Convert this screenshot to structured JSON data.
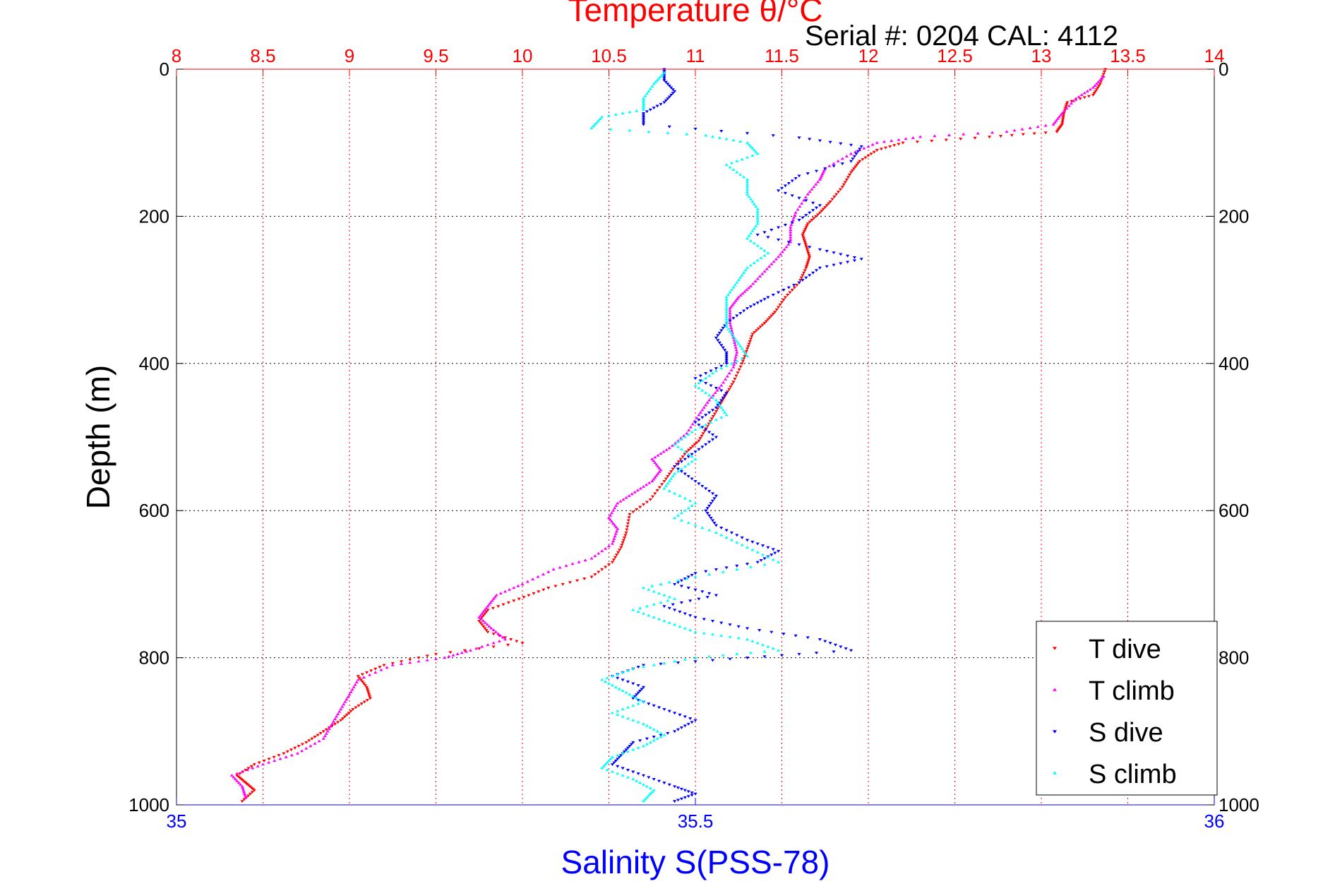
{
  "chart_data": {
    "type": "scatter",
    "title": "Temperature θ/°C",
    "annotation": "Serial #: 0204  CAL: 4112",
    "xlabel": "Salinity S(PSS-78)",
    "ylabel": "Depth (m)",
    "top_axis": {
      "ticks": [
        "8",
        "8.5",
        "9",
        "9.5",
        "10",
        "10.5",
        "11",
        "11.5",
        "12",
        "12.5",
        "13",
        "13.5",
        "14"
      ],
      "range": [
        8,
        14
      ],
      "color": "#ff0000"
    },
    "bottom_axis": {
      "ticks": [
        "35",
        "35.5",
        "36"
      ],
      "range": [
        35,
        36
      ],
      "color": "#0000ff"
    },
    "y_axis": {
      "ticks": [
        "0",
        "200",
        "400",
        "600",
        "800",
        "1000"
      ],
      "range": [
        0,
        1000
      ],
      "reversed": true
    },
    "grid": true,
    "legend_position": "bottom-right",
    "series": [
      {
        "name": "T dive",
        "color": "#ff0000",
        "axis": "temperature",
        "marker": "triangle-down",
        "points": [
          [
            13.37,
            0
          ],
          [
            13.34,
            20
          ],
          [
            13.3,
            35
          ],
          [
            13.15,
            45
          ],
          [
            13.13,
            60
          ],
          [
            13.12,
            75
          ],
          [
            13.09,
            85
          ],
          [
            12.7,
            92
          ],
          [
            12.2,
            100
          ],
          [
            12.05,
            110
          ],
          [
            11.95,
            125
          ],
          [
            11.9,
            140
          ],
          [
            11.85,
            160
          ],
          [
            11.78,
            180
          ],
          [
            11.72,
            195
          ],
          [
            11.65,
            210
          ],
          [
            11.62,
            225
          ],
          [
            11.64,
            240
          ],
          [
            11.66,
            255
          ],
          [
            11.64,
            270
          ],
          [
            11.6,
            290
          ],
          [
            11.52,
            310
          ],
          [
            11.46,
            330
          ],
          [
            11.4,
            345
          ],
          [
            11.33,
            360
          ],
          [
            11.3,
            380
          ],
          [
            11.27,
            400
          ],
          [
            11.22,
            425
          ],
          [
            11.17,
            445
          ],
          [
            11.12,
            465
          ],
          [
            11.07,
            485
          ],
          [
            11.02,
            505
          ],
          [
            10.95,
            520
          ],
          [
            10.88,
            540
          ],
          [
            10.82,
            560
          ],
          [
            10.74,
            585
          ],
          [
            10.62,
            605
          ],
          [
            10.6,
            630
          ],
          [
            10.57,
            650
          ],
          [
            10.52,
            670
          ],
          [
            10.4,
            690
          ],
          [
            10.15,
            705
          ],
          [
            9.98,
            720
          ],
          [
            9.8,
            735
          ],
          [
            9.75,
            750
          ],
          [
            9.8,
            765
          ],
          [
            10.0,
            780
          ],
          [
            9.5,
            795
          ],
          [
            9.2,
            810
          ],
          [
            9.05,
            825
          ],
          [
            9.1,
            840
          ],
          [
            9.12,
            855
          ],
          [
            9.02,
            870
          ],
          [
            8.95,
            885
          ],
          [
            8.85,
            900
          ],
          [
            8.75,
            915
          ],
          [
            8.62,
            930
          ],
          [
            8.45,
            945
          ],
          [
            8.35,
            960
          ],
          [
            8.4,
            970
          ],
          [
            8.45,
            980
          ],
          [
            8.38,
            995
          ]
        ]
      },
      {
        "name": "T climb",
        "color": "#ff00ff",
        "axis": "temperature",
        "marker": "triangle-up",
        "points": [
          [
            13.36,
            10
          ],
          [
            13.3,
            25
          ],
          [
            13.2,
            40
          ],
          [
            13.12,
            60
          ],
          [
            13.07,
            75
          ],
          [
            12.8,
            85
          ],
          [
            12.3,
            92
          ],
          [
            12.05,
            100
          ],
          [
            11.9,
            115
          ],
          [
            11.75,
            135
          ],
          [
            11.72,
            150
          ],
          [
            11.65,
            170
          ],
          [
            11.58,
            195
          ],
          [
            11.55,
            215
          ],
          [
            11.55,
            235
          ],
          [
            11.48,
            255
          ],
          [
            11.4,
            275
          ],
          [
            11.32,
            295
          ],
          [
            11.25,
            310
          ],
          [
            11.2,
            325
          ],
          [
            11.2,
            345
          ],
          [
            11.22,
            365
          ],
          [
            11.24,
            385
          ],
          [
            11.22,
            405
          ],
          [
            11.15,
            430
          ],
          [
            11.08,
            450
          ],
          [
            11.02,
            470
          ],
          [
            10.95,
            495
          ],
          [
            10.85,
            515
          ],
          [
            10.75,
            530
          ],
          [
            10.8,
            545
          ],
          [
            10.75,
            560
          ],
          [
            10.65,
            575
          ],
          [
            10.55,
            590
          ],
          [
            10.5,
            610
          ],
          [
            10.55,
            625
          ],
          [
            10.52,
            645
          ],
          [
            10.4,
            665
          ],
          [
            10.18,
            680
          ],
          [
            10.0,
            700
          ],
          [
            9.85,
            715
          ],
          [
            9.8,
            730
          ],
          [
            9.75,
            745
          ],
          [
            9.82,
            760
          ],
          [
            9.9,
            775
          ],
          [
            9.7,
            790
          ],
          [
            9.55,
            800
          ],
          [
            9.25,
            810
          ],
          [
            9.05,
            830
          ],
          [
            9.0,
            850
          ],
          [
            8.95,
            870
          ],
          [
            8.9,
            890
          ],
          [
            8.85,
            910
          ],
          [
            8.7,
            930
          ],
          [
            8.5,
            945
          ],
          [
            8.32,
            960
          ],
          [
            8.38,
            975
          ],
          [
            8.4,
            990
          ]
        ]
      },
      {
        "name": "S dive",
        "color": "#0000ff",
        "axis": "salinity",
        "marker": "triangle-down",
        "points": [
          [
            35.47,
            0
          ],
          [
            35.47,
            15
          ],
          [
            35.48,
            30
          ],
          [
            35.47,
            45
          ],
          [
            35.45,
            60
          ],
          [
            35.45,
            75
          ],
          [
            35.6,
            93
          ],
          [
            35.66,
            105
          ],
          [
            35.65,
            125
          ],
          [
            35.6,
            145
          ],
          [
            35.58,
            165
          ],
          [
            35.62,
            185
          ],
          [
            35.6,
            205
          ],
          [
            35.56,
            225
          ],
          [
            35.62,
            245
          ],
          [
            35.66,
            258
          ],
          [
            35.62,
            270
          ],
          [
            35.6,
            290
          ],
          [
            35.57,
            310
          ],
          [
            35.55,
            325
          ],
          [
            35.53,
            345
          ],
          [
            35.52,
            365
          ],
          [
            35.53,
            385
          ],
          [
            35.53,
            400
          ],
          [
            35.5,
            420
          ],
          [
            35.53,
            440
          ],
          [
            35.52,
            460
          ],
          [
            35.5,
            480
          ],
          [
            35.52,
            500
          ],
          [
            35.5,
            520
          ],
          [
            35.48,
            540
          ],
          [
            35.5,
            560
          ],
          [
            35.52,
            580
          ],
          [
            35.51,
            600
          ],
          [
            35.52,
            620
          ],
          [
            35.55,
            640
          ],
          [
            35.58,
            655
          ],
          [
            35.56,
            670
          ],
          [
            35.5,
            685
          ],
          [
            35.48,
            700
          ],
          [
            35.52,
            715
          ],
          [
            35.47,
            730
          ],
          [
            35.5,
            745
          ],
          [
            35.55,
            760
          ],
          [
            35.62,
            775
          ],
          [
            35.65,
            790
          ],
          [
            35.55,
            800
          ],
          [
            35.45,
            810
          ],
          [
            35.42,
            825
          ],
          [
            35.45,
            840
          ],
          [
            35.44,
            855
          ],
          [
            35.47,
            870
          ],
          [
            35.5,
            885
          ],
          [
            35.48,
            900
          ],
          [
            35.44,
            915
          ],
          [
            35.43,
            930
          ],
          [
            35.42,
            945
          ],
          [
            35.45,
            960
          ],
          [
            35.48,
            975
          ],
          [
            35.5,
            985
          ],
          [
            35.48,
            995
          ]
        ]
      },
      {
        "name": "S climb",
        "color": "#00ffff",
        "axis": "salinity",
        "marker": "triangle-up",
        "points": [
          [
            35.47,
            5
          ],
          [
            35.46,
            20
          ],
          [
            35.45,
            40
          ],
          [
            35.45,
            55
          ],
          [
            35.41,
            65
          ],
          [
            35.4,
            80
          ],
          [
            35.51,
            90
          ],
          [
            35.55,
            100
          ],
          [
            35.56,
            115
          ],
          [
            35.53,
            130
          ],
          [
            35.55,
            150
          ],
          [
            35.55,
            170
          ],
          [
            35.56,
            190
          ],
          [
            35.56,
            210
          ],
          [
            35.55,
            230
          ],
          [
            35.57,
            250
          ],
          [
            35.55,
            270
          ],
          [
            35.54,
            290
          ],
          [
            35.53,
            310
          ],
          [
            35.53,
            330
          ],
          [
            35.53,
            350
          ],
          [
            35.54,
            370
          ],
          [
            35.55,
            390
          ],
          [
            35.52,
            410
          ],
          [
            35.5,
            430
          ],
          [
            35.52,
            450
          ],
          [
            35.53,
            470
          ],
          [
            35.5,
            490
          ],
          [
            35.48,
            510
          ],
          [
            35.5,
            530
          ],
          [
            35.48,
            550
          ],
          [
            35.47,
            570
          ],
          [
            35.5,
            590
          ],
          [
            35.48,
            610
          ],
          [
            35.52,
            630
          ],
          [
            35.55,
            650
          ],
          [
            35.58,
            670
          ],
          [
            35.5,
            690
          ],
          [
            35.45,
            705
          ],
          [
            35.48,
            720
          ],
          [
            35.44,
            735
          ],
          [
            35.47,
            750
          ],
          [
            35.5,
            765
          ],
          [
            35.55,
            775
          ],
          [
            35.58,
            790
          ],
          [
            35.5,
            800
          ],
          [
            35.44,
            815
          ],
          [
            35.41,
            830
          ],
          [
            35.43,
            845
          ],
          [
            35.45,
            860
          ],
          [
            35.42,
            875
          ],
          [
            35.45,
            890
          ],
          [
            35.47,
            905
          ],
          [
            35.45,
            920
          ],
          [
            35.42,
            935
          ],
          [
            35.41,
            950
          ],
          [
            35.44,
            965
          ],
          [
            35.46,
            980
          ],
          [
            35.45,
            995
          ]
        ]
      }
    ]
  }
}
